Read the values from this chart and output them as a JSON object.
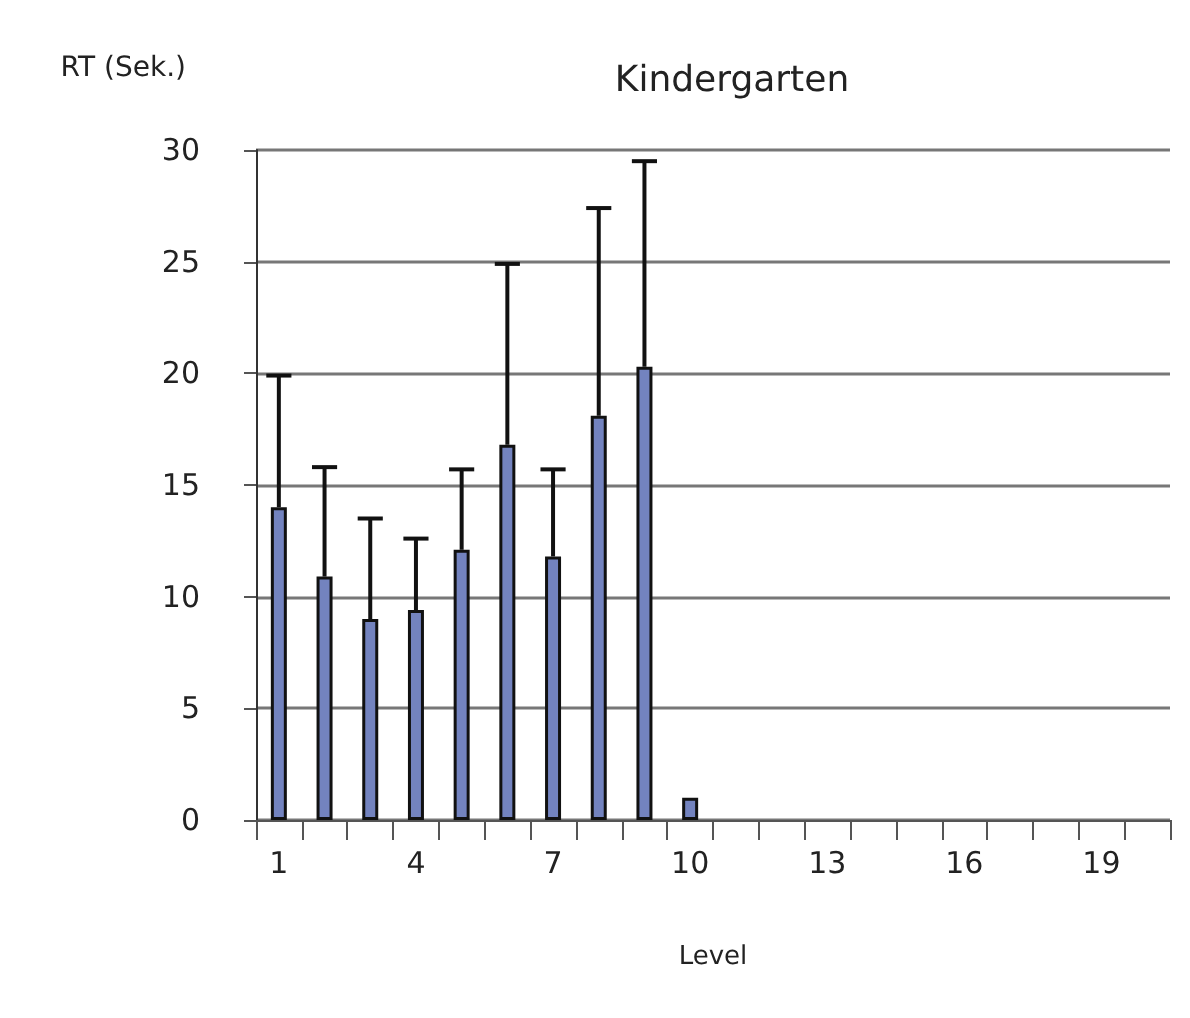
{
  "chart_data": {
    "type": "bar",
    "title": "Kindergarten",
    "xlabel": "Level",
    "ylabel": "RT (Sek.)",
    "categories": [
      "1",
      null,
      null,
      "4",
      null,
      null,
      "7",
      null,
      null,
      "10",
      null,
      null,
      "13",
      null,
      null,
      "16",
      null,
      null,
      "19",
      null
    ],
    "series": [
      {
        "color": "#7383bf",
        "values": [
          14.0,
          10.9,
          9.0,
          9.4,
          12.1,
          16.8,
          11.8,
          18.1,
          20.3,
          1.0,
          null,
          null,
          null,
          null,
          null,
          null,
          null,
          null,
          null,
          null
        ],
        "errors": [
          [
            14.0,
            19.9
          ],
          [
            10.9,
            15.8
          ],
          [
            9.0,
            13.5
          ],
          [
            9.4,
            12.6
          ],
          [
            12.1,
            15.7
          ],
          [
            16.8,
            24.9
          ],
          [
            11.8,
            15.7
          ],
          [
            18.1,
            27.4
          ],
          [
            20.3,
            29.5
          ],
          null,
          null,
          null,
          null,
          null,
          null,
          null,
          null,
          null,
          null,
          null
        ]
      }
    ],
    "ylim": [
      0,
      30
    ],
    "yticks": [
      0,
      5,
      10,
      15,
      20,
      25,
      30
    ],
    "grid": "y"
  }
}
